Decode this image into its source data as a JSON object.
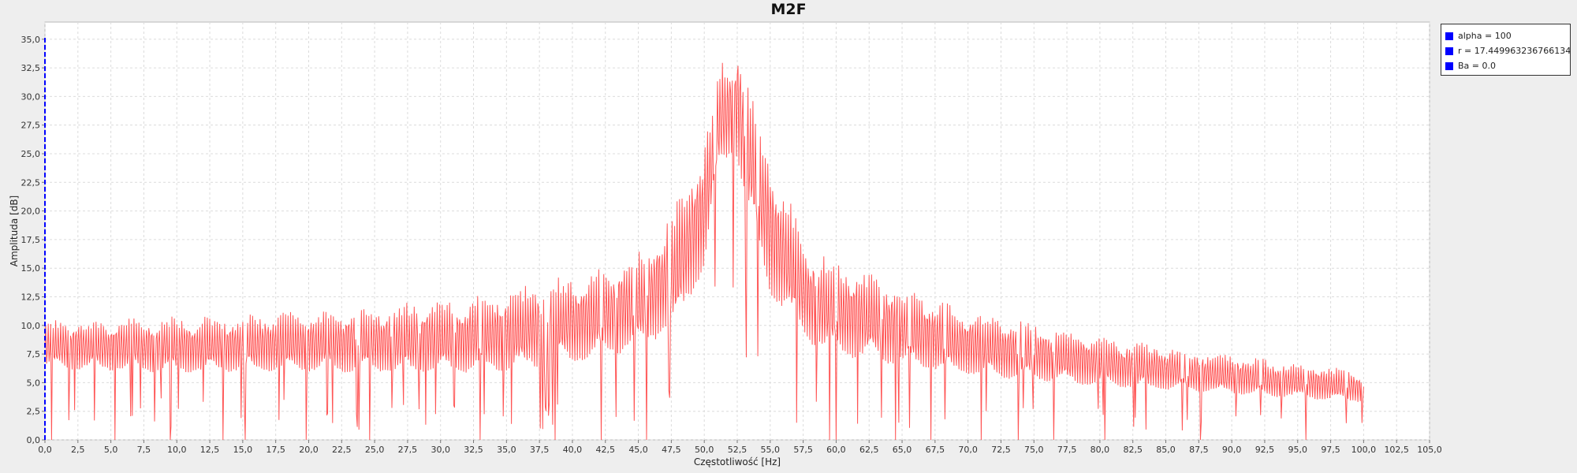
{
  "chart_data": {
    "type": "line",
    "title": "M2F",
    "xlabel": "Częstotliwość [Hz]",
    "ylabel": "Amplituda [dB]",
    "xlim": [
      0,
      105
    ],
    "ylim": [
      0,
      36.5
    ],
    "x_ticks": [
      "0,0",
      "2,5",
      "5,0",
      "7,5",
      "10,0",
      "12,5",
      "15,0",
      "17,5",
      "20,0",
      "22,5",
      "25,0",
      "27,5",
      "30,0",
      "32,5",
      "35,0",
      "37,5",
      "40,0",
      "42,5",
      "45,0",
      "47,5",
      "50,0",
      "52,5",
      "55,0",
      "57,5",
      "60,0",
      "62,5",
      "65,0",
      "67,5",
      "70,0",
      "72,5",
      "75,0",
      "77,5",
      "80,0",
      "82,5",
      "85,0",
      "87,5",
      "90,0",
      "92,5",
      "95,0",
      "97,5",
      "100,0",
      "102,5",
      "105,0"
    ],
    "y_ticks": [
      "0,0",
      "2,5",
      "5,0",
      "7,5",
      "10,0",
      "12,5",
      "15,0",
      "17,5",
      "20,0",
      "22,5",
      "25,0",
      "27,5",
      "30,0",
      "32,5",
      "35,0"
    ],
    "grid": true,
    "legend_position": "right",
    "series_color": "#ff5555",
    "marker_line_color": "#0000ff",
    "marker_line_x": 0,
    "series": [
      {
        "x_range": [
          0,
          100
        ],
        "envelope_x": [
          0,
          10,
          20,
          30,
          35,
          40,
          45,
          48,
          50,
          51,
          52,
          52.5,
          53,
          55,
          58,
          60,
          65,
          70,
          80,
          90,
          100
        ],
        "envelope_max": [
          10.5,
          10.8,
          11.3,
          12.3,
          13.2,
          14.5,
          16.5,
          21,
          26,
          33,
          34,
          35,
          33,
          25,
          17,
          16,
          13.5,
          11.5,
          9,
          7.5,
          6
        ],
        "envelope_min": [
          5,
          4.5,
          4.5,
          4.0,
          4.0,
          4.5,
          5.5,
          7,
          12,
          20,
          22,
          22,
          18,
          9,
          6,
          5,
          4.5,
          4.0,
          3.5,
          3.0,
          2.5
        ],
        "deep_dips_x": [
          0.5,
          5.3,
          9.5,
          13.5,
          15.2,
          19.8,
          24.6,
          33.0,
          38.7,
          42.2,
          45.6,
          59.5,
          60.0,
          64.5,
          67.2,
          71.0,
          73.8,
          76.5,
          80.4,
          87.6,
          95.6
        ]
      }
    ]
  },
  "legend": [
    {
      "label": "alpha = 100",
      "color": "#0000ff"
    },
    {
      "label": "r = 17.449963236766134",
      "color": "#0000ff"
    },
    {
      "label": "Ba = 0.0",
      "color": "#0000ff"
    }
  ]
}
